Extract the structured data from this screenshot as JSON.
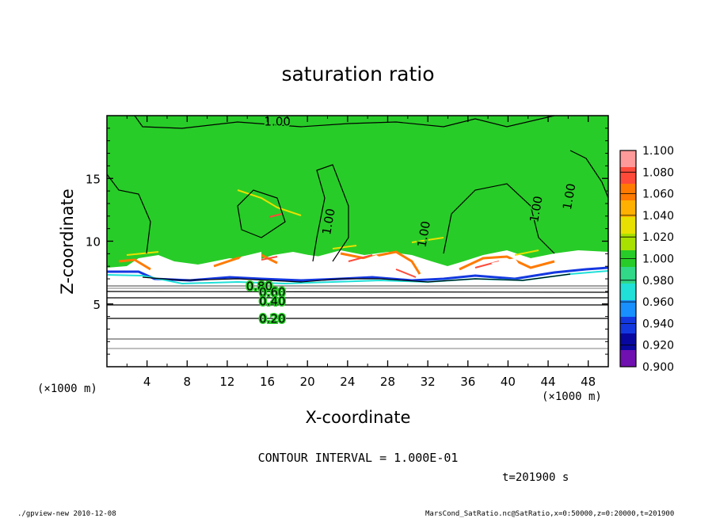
{
  "chart_data": {
    "type": "heatmap",
    "title": "saturation ratio",
    "xlabel": "X-coordinate",
    "ylabel": "Z-coordinate",
    "x_unit_left": "(×1000 m)",
    "x_unit_right": "(×1000 m)",
    "xlim": [
      0,
      50
    ],
    "ylim": [
      0,
      20
    ],
    "x_ticks": [
      4,
      8,
      12,
      16,
      20,
      24,
      28,
      32,
      36,
      40,
      44,
      48
    ],
    "y_ticks": [
      5,
      10,
      15
    ],
    "colorbar": {
      "levels": [
        "1.100",
        "1.080",
        "1.060",
        "1.040",
        "1.020",
        "1.000",
        "0.980",
        "0.960",
        "0.940",
        "0.920",
        "0.900"
      ],
      "colors": [
        "#ff9a9a",
        "#ff4a3a",
        "#ff7a00",
        "#ffb000",
        "#e8e000",
        "#a8e000",
        "#28cc28",
        "#30d888",
        "#20e0d8",
        "#1890ff",
        "#1438e0",
        "#0808a0",
        "#7010b0"
      ]
    },
    "contour_labels": [
      {
        "text": "1.00",
        "x": 17,
        "z": 19.2
      },
      {
        "text": "1.00",
        "x": 22.5,
        "z": 11.5,
        "rotate": -80
      },
      {
        "text": "1.00",
        "x": 32,
        "z": 10.5,
        "rotate": -80
      },
      {
        "text": "1.00",
        "x": 46.5,
        "z": 13.5,
        "rotate": -80
      },
      {
        "text": "1.00",
        "x": 43.2,
        "z": 12.5,
        "rotate": -80
      },
      {
        "text": "0.80",
        "x": 15.2,
        "z": 6.1
      },
      {
        "text": "0.60",
        "x": 16.5,
        "z": 5.6
      },
      {
        "text": "0.40",
        "x": 16.5,
        "z": 4.9
      },
      {
        "text": "0.20",
        "x": 16.5,
        "z": 3.5
      }
    ],
    "background_level": "1.000"
  },
  "footer": {
    "interval": "CONTOUR INTERVAL = 1.000E-01",
    "time": "t=201900 s",
    "program": "./gpview-new   2010-12-08",
    "source": "MarsCond_SatRatio.nc@SatRatio,x=0:50000,z=0:20000,t=201900"
  }
}
